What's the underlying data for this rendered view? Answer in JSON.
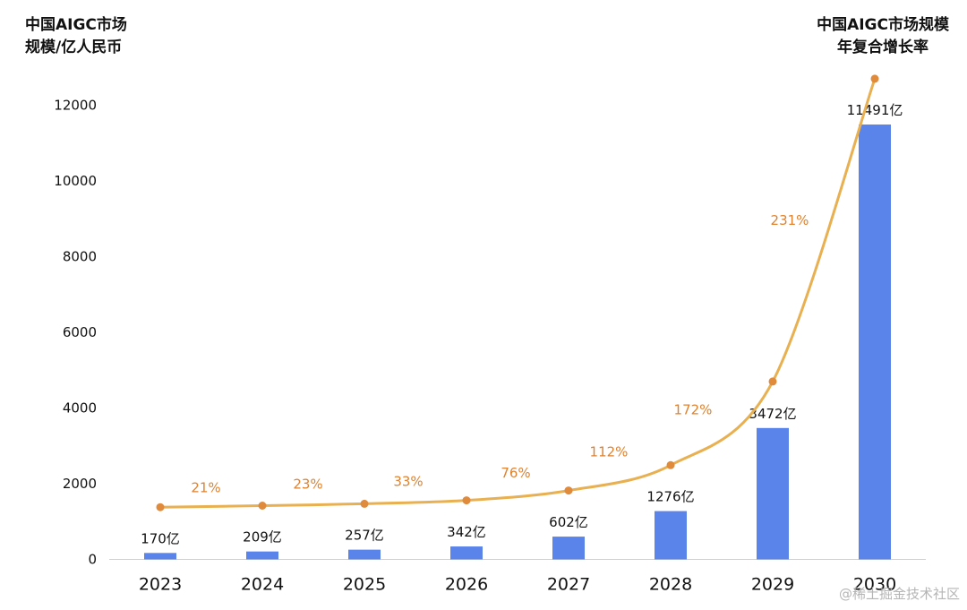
{
  "chart_data": {
    "type": "bar",
    "title": "",
    "left_axis_title": [
      "中国AIGC市场",
      "规模/亿人民币"
    ],
    "right_axis_title": [
      "中国AIGC市场规模",
      "年复合增长率"
    ],
    "categories": [
      "2023",
      "2024",
      "2025",
      "2026",
      "2027",
      "2028",
      "2029",
      "2030"
    ],
    "ylim": [
      0,
      12000
    ],
    "yticks": [
      0,
      2000,
      4000,
      6000,
      8000,
      10000,
      12000
    ],
    "grid": false,
    "series": [
      {
        "name": "中国AIGC市场规模/亿人民币",
        "type": "bar",
        "color": "#5b84ea",
        "values": [
          170,
          209,
          257,
          342,
          602,
          1276,
          3472,
          11491
        ],
        "labels": [
          "170亿",
          "209亿",
          "257亿",
          "342亿",
          "602亿",
          "1276亿",
          "3472亿",
          "11491亿"
        ]
      },
      {
        "name": "中国AIGC市场规模年复合增长率",
        "type": "line",
        "color": "#e8b050",
        "marker_color": "#e08a3c",
        "point_values": [
          1380,
          1420,
          1470,
          1560,
          1820,
          2490,
          4700,
          12700
        ],
        "segment_labels": [
          "21%",
          "23%",
          "33%",
          "76%",
          "112%",
          "172%",
          "231%"
        ]
      }
    ],
    "label_color": "#e0822e"
  },
  "watermark": "@稀土掘金技术社区"
}
